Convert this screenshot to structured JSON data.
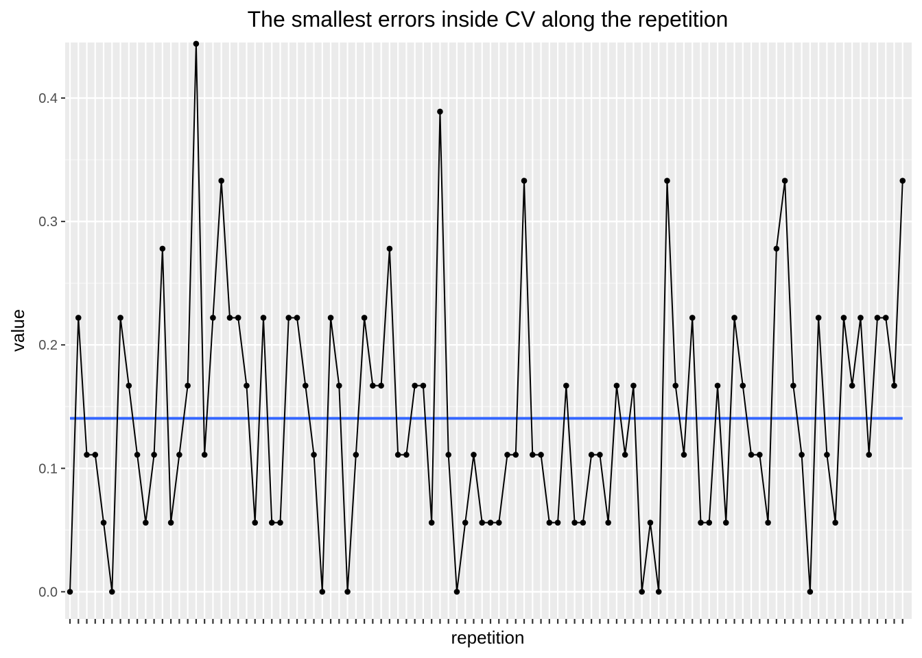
{
  "chart_data": {
    "type": "line",
    "title": "The smallest errors inside CV along the repetition",
    "xlabel": "repetition",
    "ylabel": "value",
    "ylim": [
      -0.022,
      0.445
    ],
    "y_ticks": [
      0.0,
      0.1,
      0.2,
      0.3,
      0.4
    ],
    "y_tick_labels": [
      "0.0",
      "0.1",
      "0.2",
      "0.3",
      "0.4"
    ],
    "x_tick_labels_visible": false,
    "grid": true,
    "background": "#ebebeb",
    "series": [
      {
        "color": "#000000",
        "markers": true,
        "values": [
          0.0,
          0.222,
          0.111,
          0.111,
          0.056,
          0.0,
          0.222,
          0.167,
          0.111,
          0.056,
          0.111,
          0.278,
          0.056,
          0.111,
          0.167,
          0.444,
          0.111,
          0.222,
          0.333,
          0.222,
          0.222,
          0.167,
          0.056,
          0.222,
          0.056,
          0.056,
          0.222,
          0.222,
          0.167,
          0.111,
          0.0,
          0.222,
          0.167,
          0.0,
          0.111,
          0.222,
          0.167,
          0.167,
          0.278,
          0.111,
          0.111,
          0.167,
          0.167,
          0.056,
          0.389,
          0.111,
          0.0,
          0.056,
          0.111,
          0.056,
          0.056,
          0.056,
          0.111,
          0.111,
          0.333,
          0.111,
          0.111,
          0.056,
          0.056,
          0.167,
          0.056,
          0.056,
          0.111,
          0.111,
          0.056,
          0.167,
          0.111,
          0.167,
          0.0,
          0.056,
          0.0,
          0.333,
          0.167,
          0.111,
          0.222,
          0.056,
          0.056,
          0.167,
          0.056,
          0.222,
          0.167,
          0.111,
          0.111,
          0.056,
          0.278,
          0.333,
          0.167,
          0.111,
          0.0,
          0.222,
          0.111,
          0.056,
          0.222,
          0.167,
          0.222,
          0.111,
          0.222,
          0.222,
          0.167,
          0.333
        ]
      }
    ],
    "reference_line": {
      "y": 0.1405,
      "color": "#3366ff"
    }
  }
}
